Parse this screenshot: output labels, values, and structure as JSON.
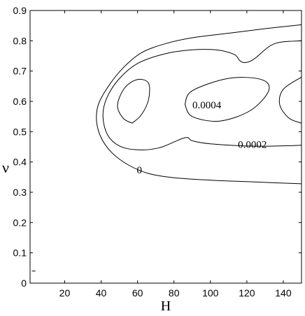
{
  "chart_data": {
    "type": "line",
    "subtype": "contour",
    "title": "",
    "xlabel": "H",
    "ylabel": "ν",
    "xlim": [
      1,
      150
    ],
    "ylim": [
      0,
      0.9
    ],
    "xticks": [
      "20",
      "40",
      "60",
      "80",
      "100",
      "120",
      "140"
    ],
    "yticks": [
      "0",
      "0.1",
      "0.2",
      "0.3",
      "0.4",
      "0.5",
      "0.6",
      "0.7",
      "0.8",
      "0.9"
    ],
    "grid": false,
    "contour_labels": [
      {
        "text": "0",
        "x": 61,
        "y": 0.37
      },
      {
        "text": "0.0002",
        "x": 123,
        "y": 0.455
      },
      {
        "text": "0.0004",
        "x": 98,
        "y": 0.585
      }
    ],
    "contours": [
      {
        "level": "0",
        "points": [
          [
            150,
            0.853
          ],
          [
            130,
            0.84
          ],
          [
            110,
            0.825
          ],
          [
            90,
            0.81
          ],
          [
            75,
            0.79
          ],
          [
            62,
            0.76
          ],
          [
            52,
            0.71
          ],
          [
            44,
            0.65
          ],
          [
            38.5,
            0.59
          ],
          [
            37.5,
            0.535
          ],
          [
            40,
            0.48
          ],
          [
            46,
            0.43
          ],
          [
            55,
            0.39
          ],
          [
            66,
            0.362
          ],
          [
            80,
            0.348
          ],
          [
            100,
            0.34
          ],
          [
            120,
            0.335
          ],
          [
            150,
            0.328
          ]
        ]
      },
      {
        "level": "0.0002",
        "points": [
          [
            150,
            0.8
          ],
          [
            135,
            0.79
          ],
          [
            124,
            0.74
          ],
          [
            119,
            0.728
          ],
          [
            116,
            0.735
          ],
          [
            113,
            0.755
          ],
          [
            103,
            0.77
          ],
          [
            90,
            0.77
          ],
          [
            75,
            0.757
          ],
          [
            60,
            0.725
          ],
          [
            50,
            0.675
          ],
          [
            43,
            0.61
          ],
          [
            41,
            0.55
          ],
          [
            43.5,
            0.49
          ],
          [
            50,
            0.453
          ],
          [
            60,
            0.44
          ],
          [
            72,
            0.447
          ],
          [
            86,
            0.48
          ],
          [
            90,
            0.47
          ],
          [
            100,
            0.46
          ],
          [
            125,
            0.452
          ],
          [
            150,
            0.455
          ]
        ]
      },
      {
        "level": "0.0004",
        "points": [
          [
            57,
            0.528
          ],
          [
            52,
            0.545
          ],
          [
            49,
            0.588
          ],
          [
            53,
            0.645
          ],
          [
            60,
            0.672
          ],
          [
            66,
            0.66
          ],
          [
            66,
            0.605
          ],
          [
            62,
            0.555
          ],
          [
            57,
            0.528
          ]
        ]
      },
      {
        "level": "0.0004",
        "points": [
          [
            86,
            0.59
          ],
          [
            90,
            0.635
          ],
          [
            110,
            0.676
          ],
          [
            128,
            0.672
          ],
          [
            132,
            0.635
          ],
          [
            122,
            0.57
          ],
          [
            105,
            0.535
          ],
          [
            90,
            0.55
          ],
          [
            86,
            0.59
          ]
        ]
      },
      {
        "level": "0.0004",
        "points": [
          [
            150,
            0.68
          ],
          [
            140,
            0.64
          ],
          [
            138,
            0.59
          ],
          [
            143,
            0.545
          ],
          [
            150,
            0.528
          ]
        ]
      },
      {
        "level": "",
        "points": [
          [
            2,
            0.04
          ],
          [
            4,
            0.04
          ]
        ]
      }
    ]
  }
}
